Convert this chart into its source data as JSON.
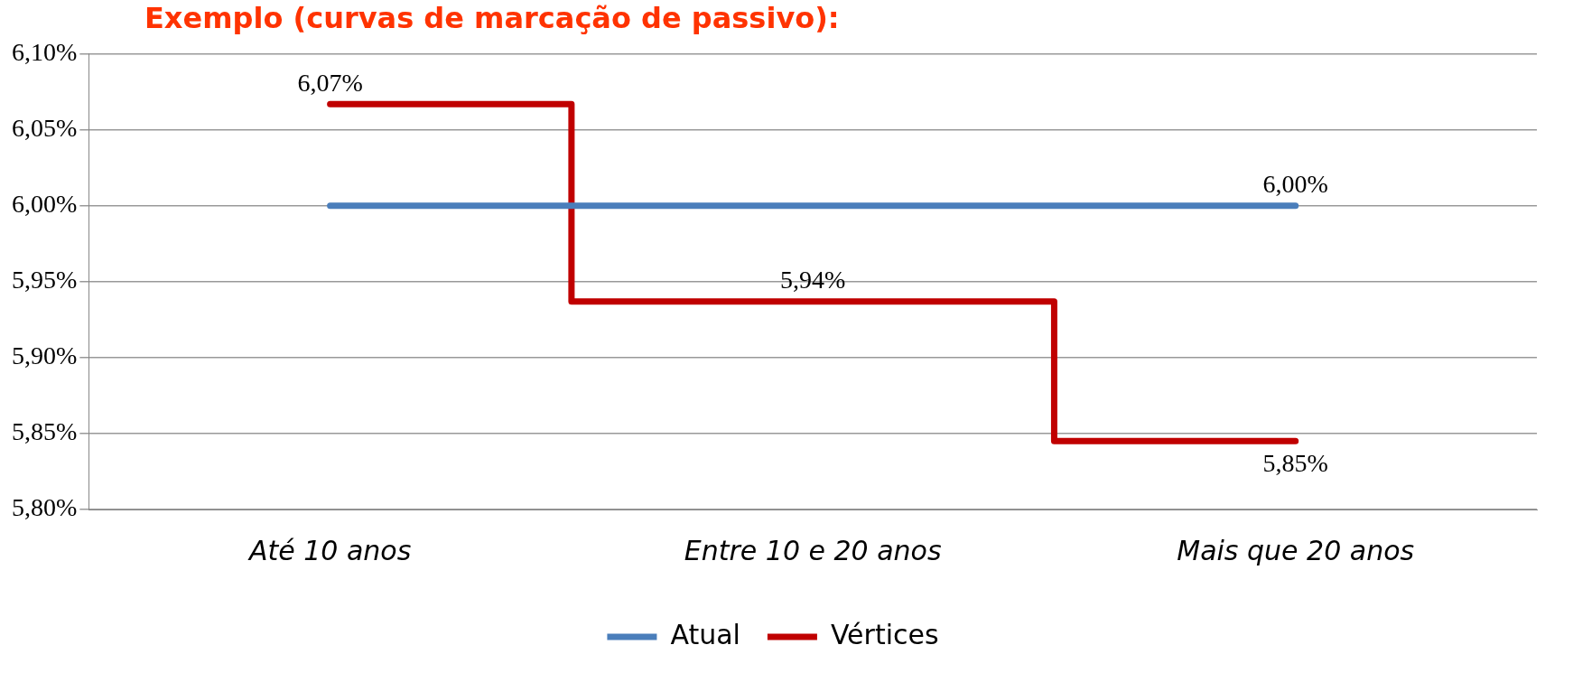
{
  "chart_data": {
    "type": "step",
    "title": "Exemplo (curvas de marcação de passivo):",
    "categories": [
      "Até 10 anos",
      "Entre 10 e 20 anos",
      "Mais que 20 anos"
    ],
    "series": [
      {
        "name": "Atual",
        "type": "line",
        "color": "#4a7ebb",
        "values": [
          6.0,
          6.0,
          6.0
        ],
        "value_labels": [
          null,
          null,
          "6,00%"
        ]
      },
      {
        "name": "Vértices",
        "color": "#c00000",
        "values": [
          6.067,
          5.937,
          5.845
        ],
        "value_labels": [
          "6,07%",
          "5,94%",
          "5,85%"
        ]
      }
    ],
    "ylim": [
      5.8,
      6.1
    ],
    "yticks": [
      {
        "value": 5.8,
        "label": "5,80%"
      },
      {
        "value": 5.85,
        "label": "5,85%"
      },
      {
        "value": 5.9,
        "label": "5,90%"
      },
      {
        "value": 5.95,
        "label": "5,95%"
      },
      {
        "value": 6.0,
        "label": "6,00%"
      },
      {
        "value": 6.05,
        "label": "6,05%"
      },
      {
        "value": 6.1,
        "label": "6,10%"
      }
    ],
    "grid": "y",
    "legend": "bottom"
  }
}
